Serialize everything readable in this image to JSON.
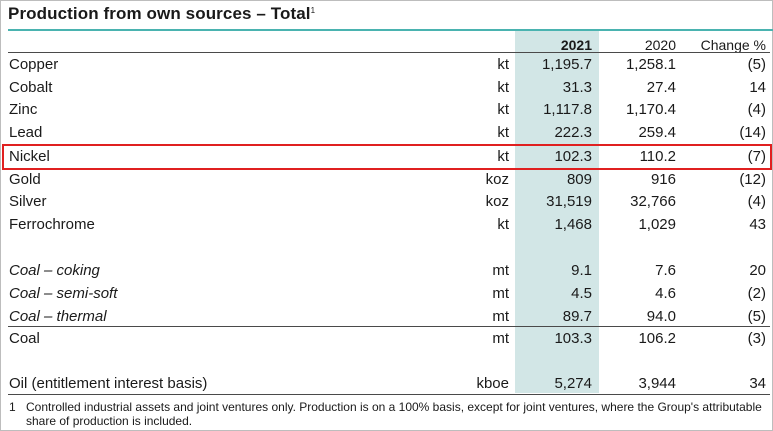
{
  "title": {
    "text": "Production from own sources – Total",
    "marker": "1"
  },
  "header": {
    "year1": "2021",
    "year2": "2020",
    "change": "Change %"
  },
  "rows": [
    {
      "label": "Copper",
      "unit": "kt",
      "y2021": "1,195.7",
      "y2020": "1,258.1",
      "change": "(5)"
    },
    {
      "label": "Cobalt",
      "unit": "kt",
      "y2021": "31.3",
      "y2020": "27.4",
      "change": "14"
    },
    {
      "label": "Zinc",
      "unit": "kt",
      "y2021": "1,117.8",
      "y2020": "1,170.4",
      "change": "(4)"
    },
    {
      "label": "Lead",
      "unit": "kt",
      "y2021": "222.3",
      "y2020": "259.4",
      "change": "(14)"
    },
    {
      "label": "Nickel",
      "unit": "kt",
      "y2021": "102.3",
      "y2020": "110.2",
      "change": "(7)"
    },
    {
      "label": "Gold",
      "unit": "koz",
      "y2021": "809",
      "y2020": "916",
      "change": "(12)"
    },
    {
      "label": "Silver",
      "unit": "koz",
      "y2021": "31,519",
      "y2020": "32,766",
      "change": "(4)"
    },
    {
      "label": "Ferrochrome",
      "unit": "kt",
      "y2021": "1,468",
      "y2020": "1,029",
      "change": "43"
    },
    {
      "label": "Coal – coking",
      "unit": "mt",
      "y2021": "9.1",
      "y2020": "7.6",
      "change": "20"
    },
    {
      "label": "Coal – semi-soft",
      "unit": "mt",
      "y2021": "4.5",
      "y2020": "4.6",
      "change": "(2)"
    },
    {
      "label": "Coal – thermal",
      "unit": "mt",
      "y2021": "89.7",
      "y2020": "94.0",
      "change": "(5)"
    },
    {
      "label": "Coal",
      "unit": "mt",
      "y2021": "103.3",
      "y2020": "106.2",
      "change": "(3)"
    },
    {
      "label": "Oil (entitlement interest basis)",
      "unit": "kboe",
      "y2021": "5,274",
      "y2020": "3,944",
      "change": "34"
    }
  ],
  "highlighted_row": "Nickel",
  "colors": {
    "accent": "#4ab3b0",
    "highlight_column": "#d2e6e6",
    "highlight_box": "#e02020"
  },
  "footnote": {
    "number": "1",
    "text": "Controlled industrial assets and joint ventures only. Production is on a 100% basis, except for joint ventures, where the Group's attributable share of production is included."
  }
}
